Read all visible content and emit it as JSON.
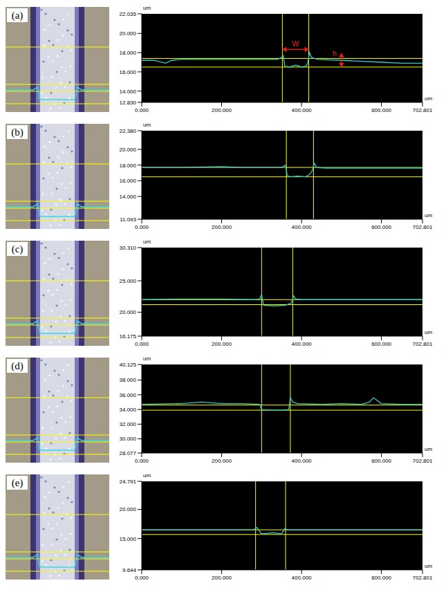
{
  "chart_data": [
    {
      "type": "line",
      "panel": "(a)",
      "x_unit": "um",
      "y_unit": "um",
      "color": "#33cccc",
      "xlim": [
        0,
        702.801
      ],
      "xticks": [
        {
          "value": 0,
          "label": "0.000"
        },
        {
          "value": 200,
          "label": "200.000"
        },
        {
          "value": 400,
          "label": "400.000"
        },
        {
          "value": 600,
          "label": "600.000"
        },
        {
          "value": 702.801,
          "label": "702.801"
        }
      ],
      "ylim": [
        12.83,
        22.035
      ],
      "yticks": [
        {
          "value": 12.83,
          "label": "12.830"
        },
        {
          "value": 14,
          "label": "14.000"
        },
        {
          "value": 16,
          "label": "16.000"
        },
        {
          "value": 18,
          "label": "18.000"
        },
        {
          "value": 20,
          "label": "20.000"
        },
        {
          "value": 22.035,
          "label": "22.035"
        }
      ],
      "x": [
        0,
        30,
        60,
        75,
        100,
        150,
        200,
        250,
        300,
        340,
        350,
        354,
        358,
        370,
        385,
        400,
        412,
        416,
        420,
        425,
        440,
        500,
        550,
        600,
        650,
        702.8
      ],
      "values": [
        17.2,
        17.2,
        16.9,
        17.2,
        17.3,
        17.3,
        17.3,
        17.3,
        17.3,
        17.3,
        17.5,
        17.7,
        16.6,
        16.5,
        16.7,
        16.5,
        16.6,
        17.0,
        18.0,
        17.5,
        17.3,
        17.2,
        17.1,
        17.0,
        16.9,
        16.9
      ],
      "vlines": [
        352,
        418
      ],
      "hlines": [
        17.4,
        16.5
      ],
      "annotations": [
        {
          "text": "W"
        },
        {
          "text": "h",
          "x": 500
        }
      ]
    },
    {
      "type": "line",
      "panel": "(b)",
      "x_unit": "um",
      "y_unit": "um",
      "color": "#33cccc",
      "xlim": [
        0,
        702.801
      ],
      "xticks": [
        {
          "value": 0,
          "label": "0.000"
        },
        {
          "value": 200,
          "label": "200.000"
        },
        {
          "value": 400,
          "label": "400.000"
        },
        {
          "value": 600,
          "label": "600.000"
        },
        {
          "value": 702.801,
          "label": "702.801"
        }
      ],
      "ylim": [
        11.093,
        22.38
      ],
      "yticks": [
        {
          "value": 11.093,
          "label": "11.093"
        },
        {
          "value": 14,
          "label": "14.000"
        },
        {
          "value": 16,
          "label": "16.000"
        },
        {
          "value": 18,
          "label": "18.000"
        },
        {
          "value": 20,
          "label": "20.000"
        },
        {
          "value": 22.38,
          "label": "22.380"
        }
      ],
      "x": [
        0,
        100,
        200,
        250,
        300,
        350,
        360,
        364,
        370,
        390,
        410,
        420,
        426,
        432,
        438,
        460,
        500,
        550,
        600,
        650,
        702.8
      ],
      "values": [
        17.7,
        17.7,
        17.8,
        17.7,
        17.7,
        17.7,
        18.0,
        16.7,
        16.5,
        16.6,
        16.5,
        16.8,
        17.2,
        18.2,
        17.7,
        17.6,
        17.6,
        17.6,
        17.6,
        17.6,
        17.6
      ],
      "vlines": [
        362,
        430
      ],
      "hlines": [
        17.7,
        16.5
      ]
    },
    {
      "type": "line",
      "panel": "(c)",
      "x_unit": "um",
      "y_unit": "um",
      "color": "#33cccc",
      "xlim": [
        0,
        702.801
      ],
      "xticks": [
        {
          "value": 0,
          "label": "0.000"
        },
        {
          "value": 200,
          "label": "200.000"
        },
        {
          "value": 400,
          "label": "400.000"
        },
        {
          "value": 600,
          "label": "600.000"
        },
        {
          "value": 702.801,
          "label": "702.801"
        }
      ],
      "ylim": [
        16.175,
        30.31
      ],
      "yticks": [
        {
          "value": 16.175,
          "label": "16.175"
        },
        {
          "value": 20,
          "label": "20.000"
        },
        {
          "value": 25,
          "label": "25.000"
        },
        {
          "value": 30.31,
          "label": "30.310"
        }
      ],
      "x": [
        0,
        100,
        200,
        280,
        295,
        300,
        305,
        330,
        360,
        375,
        380,
        385,
        400,
        500,
        600,
        702.8
      ],
      "values": [
        22.0,
        22.1,
        22.1,
        22.0,
        22.1,
        22.8,
        21.1,
        21.0,
        21.1,
        21.5,
        22.6,
        22.1,
        22.0,
        22.0,
        22.0,
        22.0
      ],
      "vlines": [
        300,
        378
      ],
      "hlines": [
        22.0,
        21.2
      ]
    },
    {
      "type": "line",
      "panel": "(d)",
      "x_unit": "um",
      "y_unit": "um",
      "color": "#33cccc",
      "xlim": [
        0,
        702.801
      ],
      "xticks": [
        {
          "value": 0,
          "label": "0.000"
        },
        {
          "value": 200,
          "label": "200.000"
        },
        {
          "value": 400,
          "label": "400.000"
        },
        {
          "value": 600,
          "label": "600.000"
        },
        {
          "value": 702.801,
          "label": "702.801"
        }
      ],
      "ylim": [
        28.077,
        40.125
      ],
      "yticks": [
        {
          "value": 28.077,
          "label": "28.077"
        },
        {
          "value": 30,
          "label": "30.000"
        },
        {
          "value": 32,
          "label": "32.000"
        },
        {
          "value": 34,
          "label": "34.000"
        },
        {
          "value": 36,
          "label": "36.000"
        },
        {
          "value": 38,
          "label": "38.000"
        },
        {
          "value": 40.125,
          "label": "40.125"
        }
      ],
      "x": [
        0,
        100,
        150,
        200,
        250,
        295,
        300,
        320,
        350,
        368,
        372,
        378,
        390,
        450,
        500,
        550,
        570,
        580,
        600,
        650,
        702.8
      ],
      "values": [
        34.7,
        34.8,
        35.0,
        34.8,
        34.8,
        34.7,
        34.0,
        33.9,
        33.9,
        34.0,
        35.6,
        35.0,
        34.8,
        34.7,
        34.8,
        34.7,
        35.0,
        35.6,
        34.8,
        34.7,
        34.7
      ],
      "vlines": [
        300,
        372
      ],
      "hlines": [
        34.6,
        33.9
      ]
    },
    {
      "type": "line",
      "panel": "(e)",
      "x_unit": "um",
      "y_unit": "um",
      "color": "#33cccc",
      "xlim": [
        0,
        702.801
      ],
      "xticks": [
        {
          "value": 0,
          "label": "0.000"
        },
        {
          "value": 200,
          "label": "200.000"
        },
        {
          "value": 400,
          "label": "400.000"
        },
        {
          "value": 600,
          "label": "600.000"
        },
        {
          "value": 702.801,
          "label": "702.801"
        }
      ],
      "ylim": [
        9.644,
        24.791
      ],
      "yticks": [
        {
          "value": 9.644,
          "label": "9.644"
        },
        {
          "value": 15,
          "label": "15.000"
        },
        {
          "value": 20,
          "label": "20.000"
        },
        {
          "value": 24.791,
          "label": "24.791"
        }
      ],
      "x": [
        0,
        100,
        200,
        280,
        288,
        300,
        330,
        350,
        358,
        365,
        400,
        500,
        600,
        702.8
      ],
      "values": [
        16.5,
        16.5,
        16.5,
        16.5,
        16.9,
        15.8,
        16.0,
        15.8,
        16.7,
        16.5,
        16.5,
        16.5,
        16.5,
        16.5
      ],
      "vlines": [
        285,
        360
      ],
      "hlines": [
        16.5,
        15.7
      ]
    }
  ]
}
